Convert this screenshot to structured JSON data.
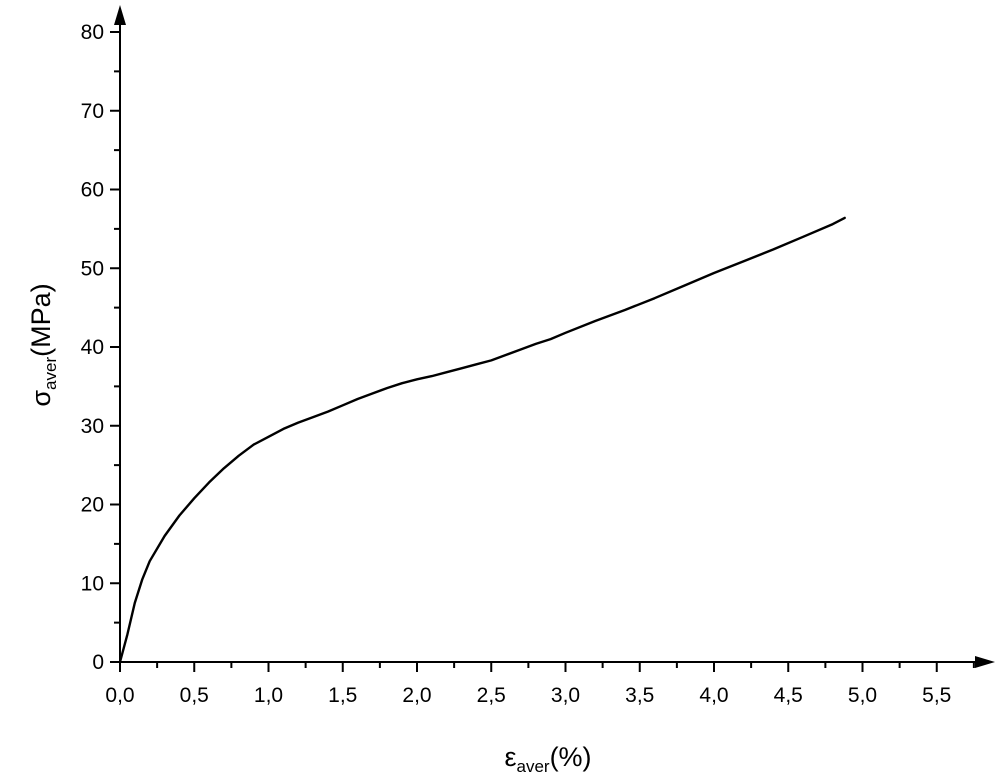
{
  "chart_data": {
    "type": "line",
    "title": "",
    "xlabel": {
      "symbol": "ε",
      "subscript": "aver",
      "unit": "(%)"
    },
    "ylabel": {
      "symbol": "σ",
      "subscript": "aver",
      "unit": "(MPa)"
    },
    "xlim": [
      0,
      5.85
    ],
    "ylim": [
      0,
      82
    ],
    "x_ticks": [
      "0,0",
      "0,5",
      "1,0",
      "1,5",
      "2,0",
      "2,5",
      "3,0",
      "3,5",
      "4,0",
      "4,5",
      "5,0",
      "5,5"
    ],
    "x_tick_values": [
      0,
      0.5,
      1.0,
      1.5,
      2.0,
      2.5,
      3.0,
      3.5,
      4.0,
      4.5,
      5.0,
      5.5
    ],
    "y_ticks": [
      "0",
      "10",
      "20",
      "30",
      "40",
      "50",
      "60",
      "70",
      "80"
    ],
    "y_tick_values": [
      0,
      10,
      20,
      30,
      40,
      50,
      60,
      70,
      80
    ],
    "grid": false,
    "legend": "none",
    "line_color": "#000000",
    "series": [
      {
        "x": [
          0,
          0.05,
          0.1,
          0.15,
          0.2,
          0.3,
          0.4,
          0.5,
          0.6,
          0.7,
          0.8,
          0.9,
          1.0,
          1.1,
          1.2,
          1.3,
          1.4,
          1.5,
          1.6,
          1.7,
          1.8,
          1.9,
          2.0,
          2.1,
          2.2,
          2.3,
          2.4,
          2.5,
          2.6,
          2.7,
          2.8,
          2.9,
          3.0,
          3.2,
          3.4,
          3.6,
          3.8,
          4.0,
          4.2,
          4.4,
          4.6,
          4.8,
          4.88
        ],
        "y": [
          0,
          3.5,
          7.5,
          10.5,
          12.8,
          16.0,
          18.6,
          20.8,
          22.8,
          24.6,
          26.2,
          27.6,
          28.6,
          29.6,
          30.4,
          31.1,
          31.8,
          32.6,
          33.4,
          34.1,
          34.8,
          35.4,
          35.9,
          36.3,
          36.8,
          37.3,
          37.8,
          38.3,
          39.0,
          39.7,
          40.4,
          41.0,
          41.8,
          43.3,
          44.7,
          46.2,
          47.8,
          49.4,
          50.9,
          52.4,
          54.0,
          55.6,
          56.4
        ]
      }
    ]
  }
}
